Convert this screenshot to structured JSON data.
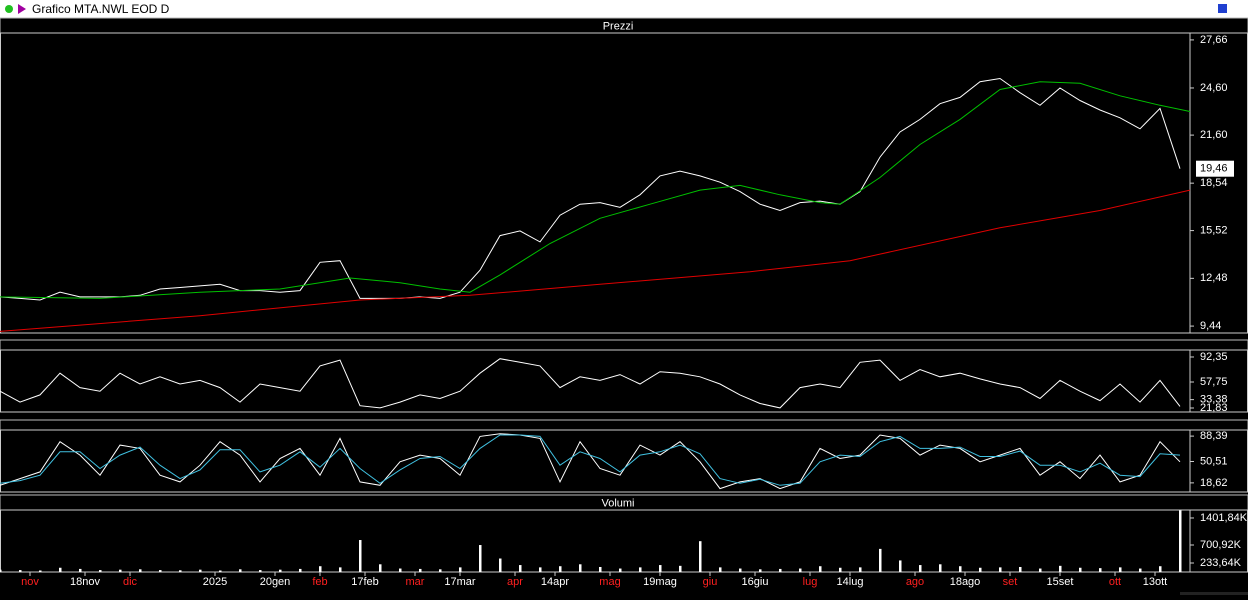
{
  "window": {
    "title": "Grafico MTA.NWL EOD D"
  },
  "chart_data": [
    {
      "type": "line",
      "title": "Prezzi",
      "xlim": [
        0,
        238
      ],
      "ylim": [
        9.0,
        28.1
      ],
      "yticks": [
        {
          "value": 27.66,
          "label": "27,66"
        },
        {
          "value": 24.6,
          "label": "24,60"
        },
        {
          "value": 21.6,
          "label": "21,60"
        },
        {
          "value": 18.54,
          "label": "18,54"
        },
        {
          "value": 15.52,
          "label": "15,52"
        },
        {
          "value": 12.48,
          "label": "12,48"
        },
        {
          "value": 9.44,
          "label": "9,44"
        }
      ],
      "last_label": {
        "value": 19.46,
        "label": "19,46"
      },
      "series": [
        {
          "color": "#ffffff",
          "x": [
            0,
            4,
            8,
            12,
            16,
            20,
            24,
            28,
            32,
            36,
            40,
            44,
            48,
            52,
            56,
            60,
            64,
            68,
            72,
            76,
            80,
            84,
            88,
            92,
            96,
            100,
            104,
            108,
            112,
            116,
            120,
            124,
            128,
            132,
            136,
            140,
            144,
            148,
            152,
            156,
            160,
            164,
            168,
            172,
            176,
            180,
            184,
            188,
            192,
            196,
            200,
            204,
            208,
            212,
            216,
            220,
            224,
            228,
            232,
            236
          ],
          "values": [
            11.3,
            11.2,
            11.1,
            11.6,
            11.3,
            11.3,
            11.3,
            11.4,
            11.8,
            11.9,
            12.0,
            12.1,
            11.7,
            11.7,
            11.6,
            11.7,
            13.5,
            13.6,
            11.2,
            11.2,
            11.2,
            11.3,
            11.2,
            11.6,
            13.0,
            15.2,
            15.5,
            14.8,
            16.5,
            17.2,
            17.3,
            17.0,
            17.8,
            19.0,
            19.3,
            19.0,
            18.6,
            18.0,
            17.2,
            16.8,
            17.3,
            17.4,
            17.2,
            18.0,
            20.2,
            21.8,
            22.6,
            23.6,
            24.0,
            25.0,
            25.2,
            24.3,
            23.5,
            24.6,
            23.8,
            23.2,
            22.7,
            22.0,
            23.3,
            19.46
          ]
        },
        {
          "color": "#00c000",
          "x": [
            0,
            20,
            40,
            56,
            70,
            80,
            88,
            94,
            100,
            110,
            120,
            130,
            140,
            148,
            156,
            164,
            168,
            176,
            184,
            192,
            200,
            208,
            216,
            224,
            232,
            238
          ],
          "values": [
            11.3,
            11.2,
            11.6,
            11.8,
            12.5,
            12.2,
            11.8,
            11.6,
            12.7,
            14.7,
            16.3,
            17.2,
            18.1,
            18.4,
            17.8,
            17.3,
            17.2,
            18.9,
            21.0,
            22.6,
            24.5,
            25.0,
            24.9,
            24.1,
            23.5,
            23.1
          ]
        },
        {
          "color": "#e00000",
          "x": [
            0,
            40,
            72,
            94,
            120,
            150,
            170,
            200,
            220,
            238
          ],
          "values": [
            9.1,
            10.1,
            11.1,
            11.4,
            12.1,
            12.9,
            13.6,
            15.7,
            16.8,
            18.1
          ]
        }
      ]
    },
    {
      "type": "line",
      "xlim": [
        0,
        238
      ],
      "ylim": [
        16.3,
        102
      ],
      "yticks": [
        {
          "value": 92.35,
          "label": "92,35"
        },
        {
          "value": 57.75,
          "label": "57,75"
        },
        {
          "value": 33.38,
          "label": "33,38"
        },
        {
          "value": 21.83,
          "label": "21,83"
        }
      ],
      "series": [
        {
          "color": "#ffffff",
          "x": [
            0,
            4,
            8,
            12,
            16,
            20,
            24,
            28,
            32,
            36,
            40,
            44,
            48,
            52,
            56,
            60,
            64,
            68,
            72,
            76,
            80,
            84,
            88,
            92,
            96,
            100,
            104,
            108,
            112,
            116,
            120,
            124,
            128,
            132,
            136,
            140,
            144,
            148,
            152,
            156,
            160,
            164,
            168,
            172,
            176,
            180,
            184,
            188,
            192,
            196,
            200,
            204,
            208,
            212,
            216,
            220,
            224,
            228,
            232,
            236
          ],
          "values": [
            45,
            30,
            40,
            70,
            50,
            45,
            70,
            55,
            65,
            55,
            60,
            50,
            30,
            55,
            50,
            45,
            80,
            88,
            25,
            22,
            30,
            40,
            35,
            45,
            70,
            90,
            85,
            80,
            50,
            65,
            60,
            68,
            55,
            72,
            70,
            65,
            55,
            40,
            28,
            22,
            50,
            55,
            50,
            85,
            88,
            60,
            75,
            65,
            70,
            62,
            55,
            50,
            35,
            60,
            45,
            32,
            55,
            30,
            60,
            24
          ]
        }
      ]
    },
    {
      "type": "line",
      "xlim": [
        0,
        238
      ],
      "ylim": [
        5,
        97.5
      ],
      "yticks": [
        {
          "value": 88.39,
          "label": "88,39"
        },
        {
          "value": 50.51,
          "label": "50,51"
        },
        {
          "value": 18.62,
          "label": "18,62"
        }
      ],
      "series": [
        {
          "color": "#ffffff",
          "x": [
            0,
            4,
            8,
            12,
            16,
            20,
            24,
            28,
            32,
            36,
            40,
            44,
            48,
            52,
            56,
            60,
            64,
            68,
            72,
            76,
            80,
            84,
            88,
            92,
            96,
            100,
            104,
            108,
            112,
            116,
            120,
            124,
            128,
            132,
            136,
            140,
            144,
            148,
            152,
            156,
            160,
            164,
            168,
            172,
            176,
            180,
            184,
            188,
            192,
            196,
            200,
            204,
            208,
            212,
            216,
            220,
            224,
            228,
            232,
            236
          ],
          "values": [
            15,
            25,
            35,
            80,
            60,
            30,
            75,
            70,
            30,
            20,
            45,
            80,
            60,
            20,
            55,
            70,
            30,
            85,
            20,
            15,
            50,
            60,
            55,
            30,
            88,
            92,
            90,
            85,
            20,
            80,
            40,
            30,
            75,
            60,
            80,
            50,
            10,
            20,
            25,
            10,
            20,
            70,
            55,
            60,
            90,
            85,
            60,
            75,
            70,
            50,
            60,
            70,
            30,
            50,
            25,
            60,
            20,
            30,
            80,
            50
          ]
        },
        {
          "color": "#40c0e0",
          "x": [
            0,
            4,
            8,
            12,
            16,
            20,
            24,
            28,
            32,
            36,
            40,
            44,
            48,
            52,
            56,
            60,
            64,
            68,
            72,
            76,
            80,
            84,
            88,
            92,
            96,
            100,
            104,
            108,
            112,
            116,
            120,
            124,
            128,
            132,
            136,
            140,
            144,
            148,
            152,
            156,
            160,
            164,
            168,
            172,
            176,
            180,
            184,
            188,
            192,
            196,
            200,
            204,
            208,
            212,
            216,
            220,
            224,
            228,
            232,
            236
          ],
          "values": [
            18,
            22,
            30,
            65,
            65,
            40,
            60,
            72,
            45,
            25,
            38,
            68,
            68,
            35,
            45,
            65,
            42,
            70,
            40,
            18,
            38,
            55,
            58,
            40,
            70,
            90,
            90,
            88,
            45,
            65,
            55,
            35,
            60,
            65,
            75,
            62,
            25,
            18,
            24,
            15,
            18,
            50,
            60,
            58,
            80,
            88,
            70,
            70,
            72,
            58,
            58,
            66,
            45,
            45,
            35,
            48,
            30,
            28,
            62,
            60
          ]
        }
      ]
    },
    {
      "type": "bar",
      "title": "Volumi",
      "color": "#ffffff",
      "xlim": [
        0,
        238
      ],
      "ylim": [
        0,
        1609
      ],
      "yticks": [
        {
          "value": 1401.84,
          "label": "1401,84K"
        },
        {
          "value": 700.92,
          "label": "700,92K"
        },
        {
          "value": 233.64,
          "label": "233,64K"
        }
      ],
      "x": [
        0,
        4,
        8,
        12,
        16,
        20,
        24,
        28,
        32,
        36,
        40,
        44,
        48,
        52,
        56,
        60,
        64,
        68,
        72,
        76,
        80,
        84,
        88,
        92,
        96,
        100,
        104,
        108,
        112,
        116,
        120,
        124,
        128,
        132,
        136,
        140,
        144,
        148,
        152,
        156,
        160,
        164,
        168,
        172,
        176,
        180,
        184,
        188,
        192,
        196,
        200,
        204,
        208,
        212,
        216,
        220,
        224,
        228,
        232,
        236
      ],
      "values": [
        60,
        50,
        40,
        110,
        80,
        50,
        60,
        70,
        50,
        45,
        60,
        40,
        70,
        50,
        60,
        80,
        150,
        120,
        830,
        200,
        90,
        80,
        70,
        120,
        700,
        350,
        180,
        120,
        150,
        200,
        130,
        90,
        120,
        180,
        160,
        800,
        120,
        90,
        70,
        80,
        90,
        150,
        110,
        120,
        600,
        300,
        180,
        200,
        150,
        110,
        120,
        130,
        90,
        160,
        110,
        100,
        120,
        90,
        150,
        1600
      ],
      "xticks": [
        {
          "value": 17,
          "label": "18nov"
        },
        {
          "value": 43,
          "label": "2025"
        },
        {
          "value": 55,
          "label": "20gen"
        },
        {
          "value": 73,
          "label": "17feb"
        },
        {
          "value": 92,
          "label": "17mar"
        },
        {
          "value": 111,
          "label": "14apr"
        },
        {
          "value": 132,
          "label": "19mag"
        },
        {
          "value": 151,
          "label": "16giu"
        },
        {
          "value": 170,
          "label": "14lug"
        },
        {
          "value": 193,
          "label": "18ago"
        },
        {
          "value": 212,
          "label": "15set"
        },
        {
          "value": 231,
          "label": "13ott"
        }
      ],
      "month_ticks": [
        {
          "value": 6,
          "label": "nov"
        },
        {
          "value": 26,
          "label": "dic"
        },
        {
          "value": 64,
          "label": "feb"
        },
        {
          "value": 83,
          "label": "mar"
        },
        {
          "value": 103,
          "label": "apr"
        },
        {
          "value": 122,
          "label": "mag"
        },
        {
          "value": 142,
          "label": "giu"
        },
        {
          "value": 162,
          "label": "lug"
        },
        {
          "value": 183,
          "label": "ago"
        },
        {
          "value": 202,
          "label": "set"
        },
        {
          "value": 223,
          "label": "ott"
        }
      ],
      "month_tick_color": "#ff2020"
    }
  ]
}
